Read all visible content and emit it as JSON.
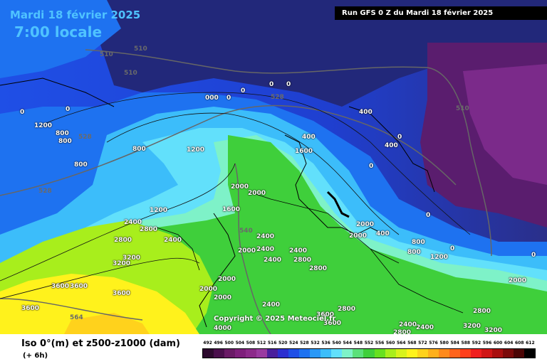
{
  "header": {
    "date": "Mardi 18 février 2025",
    "time": "7:00 locale",
    "run": "Run GFS 0 Z du Mardi 18 février 2025"
  },
  "copyright": "Copyright © 2025 Meteociel.fr",
  "legend": {
    "title": "Iso 0°(m) et z500-z1000 (dam)",
    "subtitle": "(+ 6h)",
    "scale_values": [
      "492",
      "496",
      "500",
      "504",
      "508",
      "512",
      "516",
      "520",
      "524",
      "528",
      "532",
      "536",
      "540",
      "544",
      "548",
      "552",
      "556",
      "560",
      "564",
      "568",
      "572",
      "576",
      "580",
      "584",
      "588",
      "592",
      "596",
      "600",
      "604",
      "608",
      "612"
    ],
    "scale_colors": [
      "#2d0a2e",
      "#4a0f4c",
      "#6a1a66",
      "#7e1f7b",
      "#8c2a8a",
      "#9a3aa0",
      "#4a1f9c",
      "#2c2fd0",
      "#1f4fe6",
      "#1e72f0",
      "#2a98f6",
      "#3cbdfa",
      "#62e0fb",
      "#7ef2c8",
      "#5be07a",
      "#3fcf3b",
      "#67e020",
      "#a8ee1c",
      "#d8f21c",
      "#fff21c",
      "#ffd21c",
      "#ffb01c",
      "#ff8a1c",
      "#ff641c",
      "#ff401c",
      "#f01f1f",
      "#d01616",
      "#a80f0f",
      "#7a0a0a",
      "#4a0505",
      "#000000"
    ]
  },
  "map": {
    "freezing_level_labels": [
      {
        "text": "0",
        "pos": "a"
      },
      {
        "text": "0",
        "pos": "b"
      },
      {
        "text": "1200",
        "pos": "c"
      },
      {
        "text": "800",
        "pos": "d"
      },
      {
        "text": "800",
        "pos": "e"
      },
      {
        "text": "000",
        "pos": "f"
      },
      {
        "text": "0",
        "pos": "g"
      },
      {
        "text": "0",
        "pos": "h"
      },
      {
        "text": "0",
        "pos": "i"
      },
      {
        "text": "0",
        "pos": "j"
      },
      {
        "text": "400",
        "pos": "k"
      },
      {
        "text": "0",
        "pos": "l"
      },
      {
        "text": "400",
        "pos": "m"
      },
      {
        "text": "400",
        "pos": "n"
      },
      {
        "text": "1600",
        "pos": "o"
      },
      {
        "text": "800",
        "pos": "p"
      },
      {
        "text": "1200",
        "pos": "q"
      },
      {
        "text": "800",
        "pos": "r"
      },
      {
        "text": "2000",
        "pos": "s"
      },
      {
        "text": "2000",
        "pos": "t"
      },
      {
        "text": "1600",
        "pos": "u"
      },
      {
        "text": "1200",
        "pos": "v"
      },
      {
        "text": "2400",
        "pos": "w"
      },
      {
        "text": "2800",
        "pos": "x"
      },
      {
        "text": "2400",
        "pos": "y"
      },
      {
        "text": "2800",
        "pos": "z"
      },
      {
        "text": "3200",
        "pos": "aa"
      },
      {
        "text": "3200",
        "pos": "ab"
      },
      {
        "text": "3600",
        "pos": "ac"
      },
      {
        "text": "3600",
        "pos": "ad"
      },
      {
        "text": "3600",
        "pos": "ae"
      },
      {
        "text": "3600",
        "pos": "af"
      },
      {
        "text": "2400",
        "pos": "ag"
      },
      {
        "text": "2000",
        "pos": "ah"
      },
      {
        "text": "2400",
        "pos": "ai"
      },
      {
        "text": "2400",
        "pos": "aj"
      },
      {
        "text": "2400",
        "pos": "ak"
      },
      {
        "text": "2800",
        "pos": "al"
      },
      {
        "text": "2800",
        "pos": "am"
      },
      {
        "text": "2000",
        "pos": "an"
      },
      {
        "text": "2000",
        "pos": "ao"
      },
      {
        "text": "2000",
        "pos": "ap"
      },
      {
        "text": "2400",
        "pos": "aq"
      },
      {
        "text": "2800",
        "pos": "ar"
      },
      {
        "text": "3600",
        "pos": "as"
      },
      {
        "text": "3600",
        "pos": "at"
      },
      {
        "text": "4000",
        "pos": "au"
      },
      {
        "text": "2000",
        "pos": "av"
      },
      {
        "text": "2000",
        "pos": "aw"
      },
      {
        "text": "400",
        "pos": "ax"
      },
      {
        "text": "800",
        "pos": "ay"
      },
      {
        "text": "800",
        "pos": "az"
      },
      {
        "text": "0",
        "pos": "ba"
      },
      {
        "text": "1200",
        "pos": "bb"
      },
      {
        "text": "2000",
        "pos": "bc"
      },
      {
        "text": "2800",
        "pos": "bd"
      },
      {
        "text": "3200",
        "pos": "be"
      },
      {
        "text": "3200",
        "pos": "bf"
      },
      {
        "text": "2400",
        "pos": "bg"
      },
      {
        "text": "2400",
        "pos": "bh"
      },
      {
        "text": "2800",
        "pos": "bi"
      },
      {
        "text": "0",
        "pos": "bj"
      },
      {
        "text": "0",
        "pos": "bk"
      },
      {
        "text": "0",
        "pos": "bl"
      }
    ],
    "thickness_labels": [
      {
        "text": "510",
        "pos": "t1"
      },
      {
        "text": "510",
        "pos": "t2"
      },
      {
        "text": "510",
        "pos": "t3"
      },
      {
        "text": "528",
        "pos": "t4"
      },
      {
        "text": "528",
        "pos": "t5"
      },
      {
        "text": "528",
        "pos": "t6"
      },
      {
        "text": "510",
        "pos": "t7"
      },
      {
        "text": "540",
        "pos": "t8"
      },
      {
        "text": "564",
        "pos": "t9"
      }
    ]
  }
}
